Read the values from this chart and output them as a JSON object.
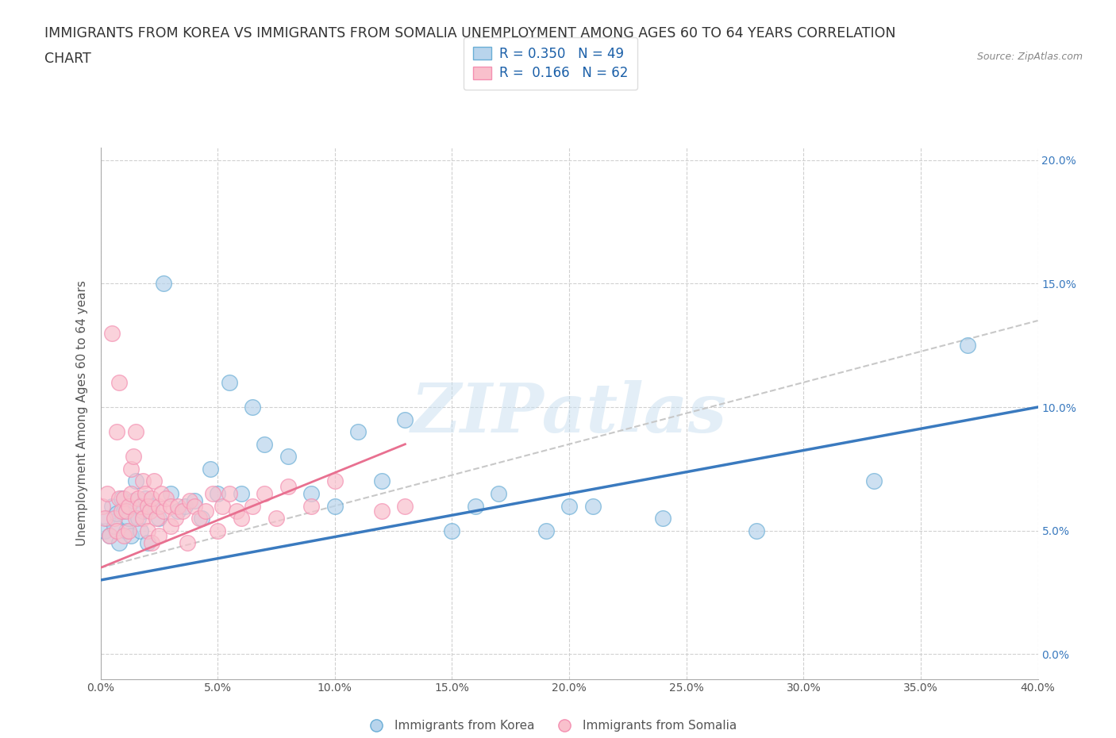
{
  "title_line1": "IMMIGRANTS FROM KOREA VS IMMIGRANTS FROM SOMALIA UNEMPLOYMENT AMONG AGES 60 TO 64 YEARS CORRELATION",
  "title_line2": "CHART",
  "source_text": "Source: ZipAtlas.com",
  "ylabel": "Unemployment Among Ages 60 to 64 years",
  "xlabel_korea": "Immigrants from Korea",
  "xlabel_somalia": "Immigrants from Somalia",
  "watermark": "ZIPatlas",
  "legend_korea_R": "0.350",
  "legend_korea_N": "49",
  "legend_somalia_R": "0.166",
  "legend_somalia_N": "62",
  "korea_color": "#b8d4ec",
  "somalia_color": "#f9c0cc",
  "korea_edge_color": "#6aaed6",
  "somalia_edge_color": "#f48fb1",
  "trendline_korea_color": "#3a7abf",
  "trendline_somalia_color": "#e87090",
  "trendline_gray_color": "#c8c8c8",
  "xlim": [
    0.0,
    0.4
  ],
  "ylim": [
    -0.01,
    0.205
  ],
  "xticks": [
    0.0,
    0.05,
    0.1,
    0.15,
    0.2,
    0.25,
    0.3,
    0.35,
    0.4
  ],
  "yticks": [
    0.0,
    0.05,
    0.1,
    0.15,
    0.2
  ],
  "background_color": "#ffffff",
  "grid_color": "#d0d0d0",
  "title_fontsize": 12.5,
  "axis_label_fontsize": 11,
  "tick_fontsize": 10,
  "legend_fontsize": 12,
  "korea_x": [
    0.002,
    0.003,
    0.004,
    0.005,
    0.006,
    0.007,
    0.008,
    0.009,
    0.01,
    0.011,
    0.012,
    0.013,
    0.014,
    0.015,
    0.016,
    0.017,
    0.018,
    0.019,
    0.02,
    0.022,
    0.025,
    0.027,
    0.03,
    0.033,
    0.036,
    0.04,
    0.043,
    0.047,
    0.05,
    0.055,
    0.06,
    0.065,
    0.07,
    0.08,
    0.09,
    0.1,
    0.11,
    0.12,
    0.13,
    0.15,
    0.16,
    0.17,
    0.19,
    0.2,
    0.21,
    0.24,
    0.28,
    0.33,
    0.37
  ],
  "korea_y": [
    0.05,
    0.055,
    0.048,
    0.06,
    0.052,
    0.057,
    0.045,
    0.063,
    0.058,
    0.05,
    0.055,
    0.048,
    0.062,
    0.07,
    0.055,
    0.05,
    0.058,
    0.063,
    0.045,
    0.06,
    0.055,
    0.15,
    0.065,
    0.058,
    0.06,
    0.062,
    0.055,
    0.075,
    0.065,
    0.11,
    0.065,
    0.1,
    0.085,
    0.08,
    0.065,
    0.06,
    0.09,
    0.07,
    0.095,
    0.05,
    0.06,
    0.065,
    0.05,
    0.06,
    0.06,
    0.055,
    0.05,
    0.07,
    0.125
  ],
  "somalia_x": [
    0.001,
    0.002,
    0.003,
    0.004,
    0.005,
    0.006,
    0.007,
    0.007,
    0.008,
    0.008,
    0.009,
    0.01,
    0.01,
    0.011,
    0.012,
    0.012,
    0.013,
    0.013,
    0.014,
    0.015,
    0.015,
    0.016,
    0.017,
    0.018,
    0.018,
    0.019,
    0.02,
    0.02,
    0.021,
    0.022,
    0.022,
    0.023,
    0.024,
    0.025,
    0.025,
    0.026,
    0.027,
    0.028,
    0.03,
    0.03,
    0.032,
    0.033,
    0.035,
    0.037,
    0.038,
    0.04,
    0.042,
    0.045,
    0.048,
    0.05,
    0.052,
    0.055,
    0.058,
    0.06,
    0.065,
    0.07,
    0.075,
    0.08,
    0.09,
    0.1,
    0.12,
    0.13
  ],
  "somalia_y": [
    0.06,
    0.055,
    0.065,
    0.048,
    0.13,
    0.055,
    0.05,
    0.09,
    0.063,
    0.11,
    0.058,
    0.063,
    0.048,
    0.058,
    0.06,
    0.05,
    0.065,
    0.075,
    0.08,
    0.055,
    0.09,
    0.063,
    0.06,
    0.055,
    0.07,
    0.065,
    0.06,
    0.05,
    0.058,
    0.063,
    0.045,
    0.07,
    0.055,
    0.06,
    0.048,
    0.065,
    0.058,
    0.063,
    0.052,
    0.06,
    0.055,
    0.06,
    0.058,
    0.045,
    0.062,
    0.06,
    0.055,
    0.058,
    0.065,
    0.05,
    0.06,
    0.065,
    0.058,
    0.055,
    0.06,
    0.065,
    0.055,
    0.068,
    0.06,
    0.07,
    0.058,
    0.06
  ]
}
